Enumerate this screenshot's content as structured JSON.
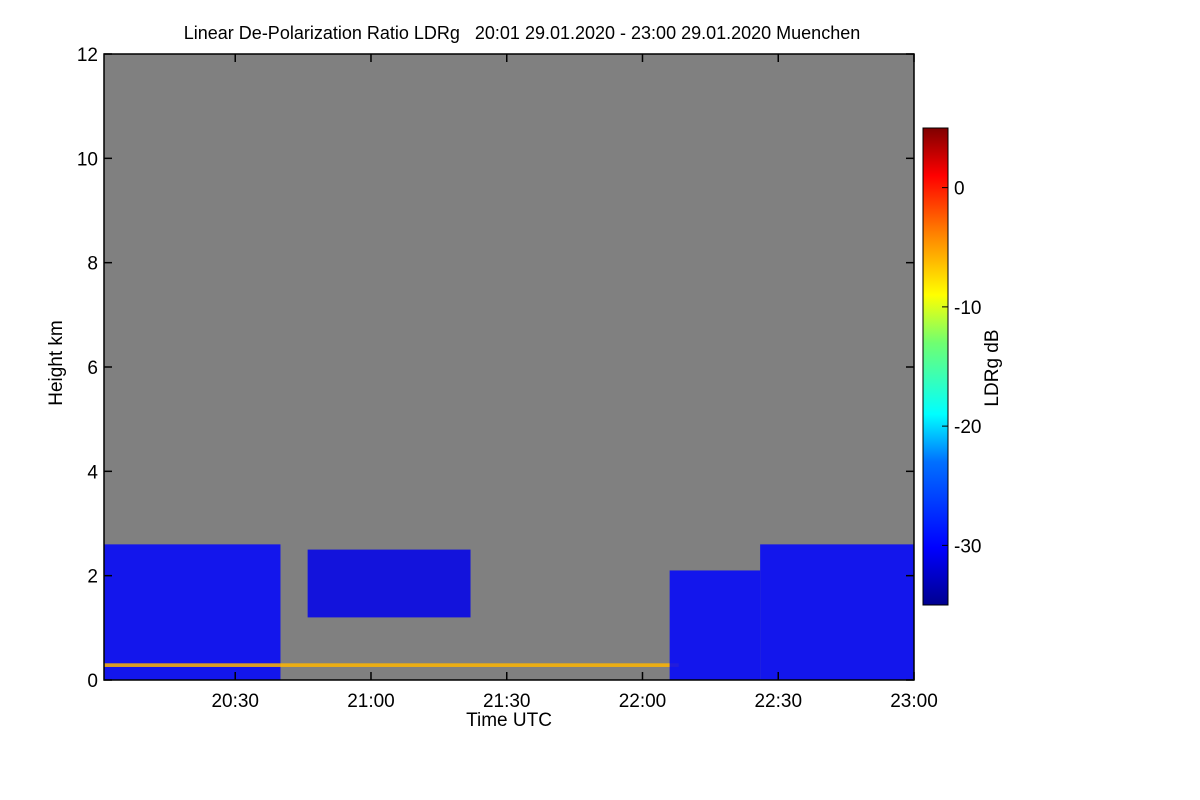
{
  "chart_data": {
    "type": "heatmap",
    "title": "Linear De-Polarization Ratio LDRg   20:01 29.01.2020 - 23:00 29.01.2020 Muenchen",
    "xlabel": "Time UTC",
    "ylabel": "Height km",
    "colorbar_label": "LDRg dB",
    "x_start_min": 1201,
    "x_end_min": 1380,
    "xlim_min": [
      1201,
      1380
    ],
    "ylim_km": [
      0,
      12
    ],
    "x_ticks": [
      {
        "label": "20:30",
        "min": 1230
      },
      {
        "label": "21:00",
        "min": 1260
      },
      {
        "label": "21:30",
        "min": 1290
      },
      {
        "label": "22:00",
        "min": 1320
      },
      {
        "label": "22:30",
        "min": 1350
      },
      {
        "label": "23:00",
        "min": 1380
      }
    ],
    "y_ticks": [
      {
        "label": "0",
        "km": 0
      },
      {
        "label": "2",
        "km": 2
      },
      {
        "label": "4",
        "km": 4
      },
      {
        "label": "6",
        "km": 6
      },
      {
        "label": "8",
        "km": 8
      },
      {
        "label": "10",
        "km": 10
      },
      {
        "label": "12",
        "km": 12
      }
    ],
    "colorbar_range_db": [
      -35,
      5
    ],
    "colorbar_ticks": [
      {
        "label": "0",
        "db": 0
      },
      {
        "label": "-10",
        "db": -10
      },
      {
        "label": "-20",
        "db": -20
      },
      {
        "label": "-30",
        "db": -30
      }
    ],
    "background": "no signal (grey)",
    "features": [
      {
        "name": "low cloud layer",
        "t_start_min": 1201,
        "t_end_min": 1240,
        "h_bottom_km": 0.0,
        "h_top_km": 2.6,
        "ldr_db": -30
      },
      {
        "name": "cloud patches",
        "t_start_min": 1246,
        "t_end_min": 1282,
        "h_bottom_km": 1.2,
        "h_top_km": 2.5,
        "ldr_db": -31
      },
      {
        "name": "aerosol layer",
        "t_start_min": 1201,
        "t_end_min": 1328,
        "h_bottom_km": 0.25,
        "h_top_km": 0.32,
        "ldr_db": -6
      },
      {
        "name": "cloud block",
        "t_start_min": 1326,
        "t_end_min": 1346,
        "h_bottom_km": 0.0,
        "h_top_km": 2.1,
        "ldr_db": -30
      },
      {
        "name": "cloud block",
        "t_start_min": 1346,
        "t_end_min": 1380,
        "h_bottom_km": 0.0,
        "h_top_km": 2.6,
        "ldr_db": -30
      }
    ]
  },
  "colors": {
    "background": "#808080",
    "frame": "#000000"
  }
}
